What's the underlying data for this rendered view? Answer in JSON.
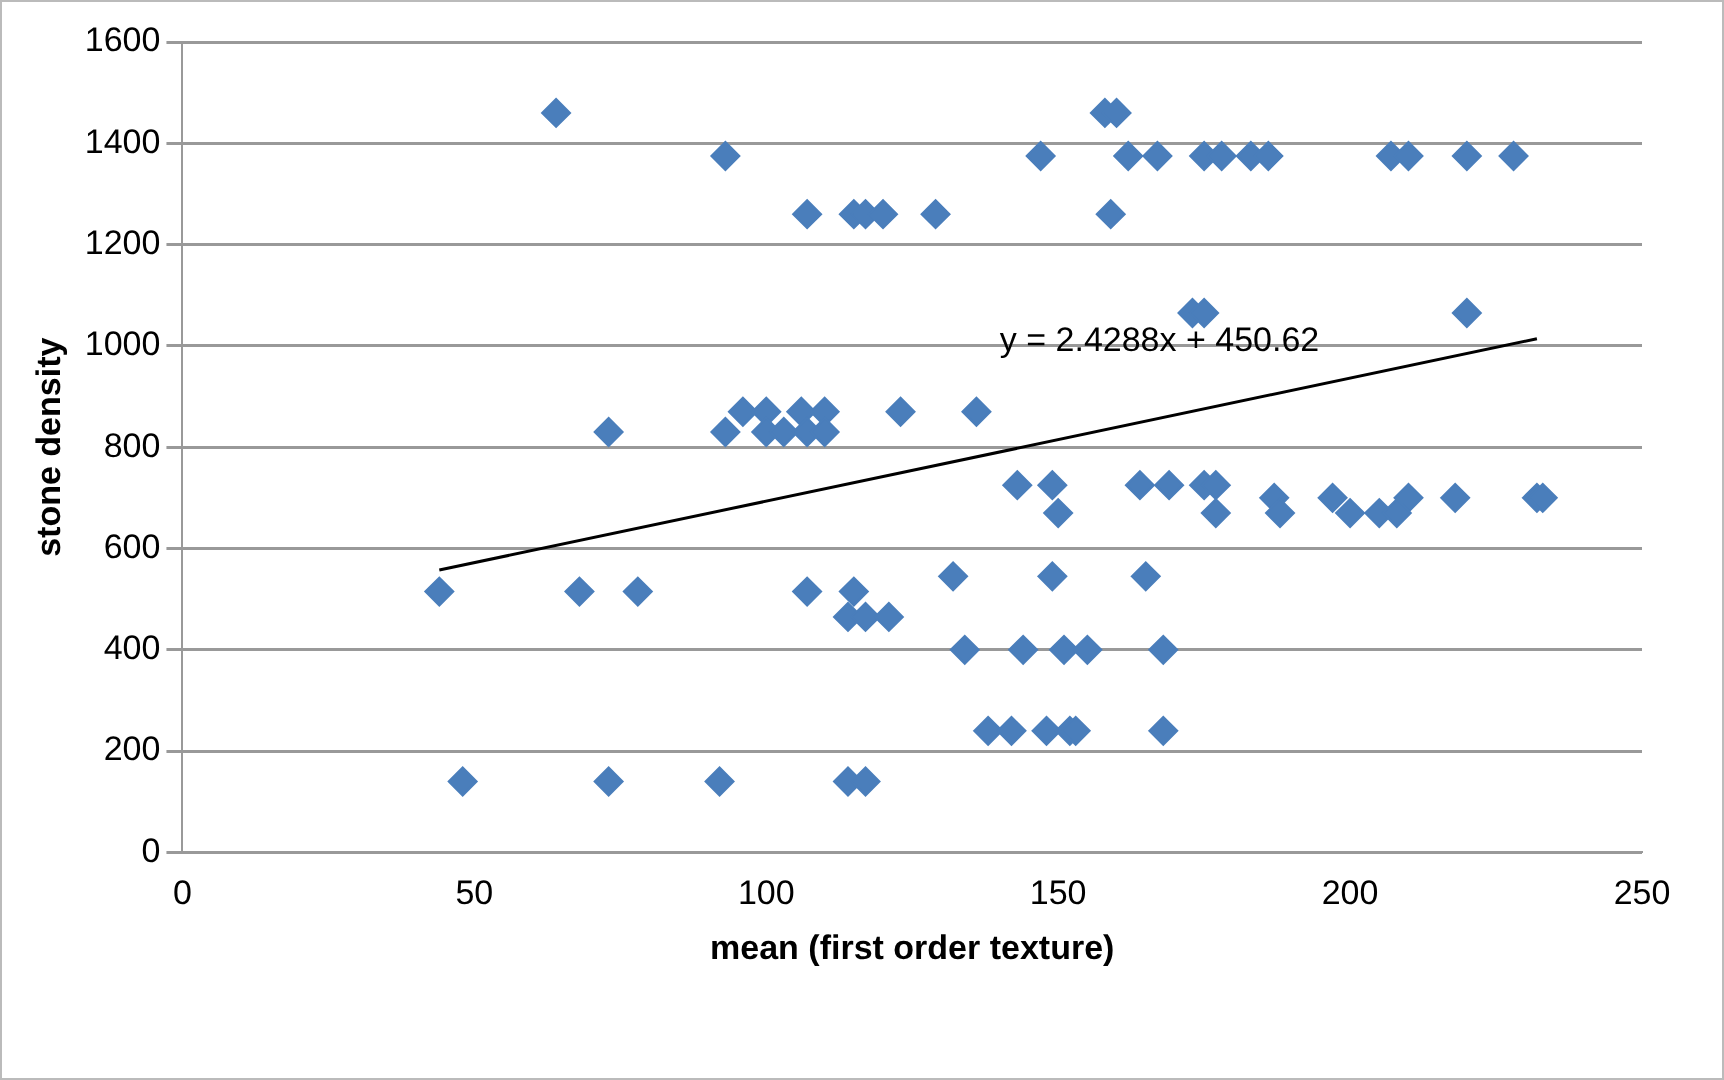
{
  "chart_data": {
    "type": "scatter",
    "xlabel": "mean (first order texture)",
    "ylabel": "stone density",
    "xlim": [
      0,
      250
    ],
    "xticks": [
      0,
      50,
      100,
      150,
      200,
      250
    ],
    "ylim": [
      0,
      1600
    ],
    "yticks": [
      0,
      200,
      400,
      600,
      800,
      1000,
      1200,
      1400,
      1600
    ],
    "grid": "y",
    "legend": false,
    "marker": "diamond",
    "annotations": [
      "y = 2.4288x + 450.62"
    ],
    "series": [
      {
        "color": "#4a7ebb",
        "x": [
          64,
          158,
          160,
          93,
          147,
          162,
          167,
          175,
          178,
          183,
          186,
          207,
          210,
          220,
          228,
          107,
          115,
          117,
          120,
          129,
          159,
          173,
          175,
          220,
          96,
          100,
          106,
          110,
          123,
          136,
          93,
          100,
          103,
          107,
          110,
          73,
          143,
          149,
          164,
          169,
          175,
          177,
          187,
          197,
          210,
          218,
          232,
          233,
          150,
          177,
          188,
          200,
          205,
          208,
          132,
          149,
          165,
          44,
          68,
          78,
          107,
          115,
          114,
          117,
          121,
          134,
          144,
          151,
          155,
          168,
          138,
          142,
          148,
          152,
          153,
          168,
          48,
          73,
          92,
          114,
          117
        ],
        "values": [
          1460,
          1460,
          1460,
          1375,
          1375,
          1375,
          1375,
          1375,
          1375,
          1375,
          1375,
          1375,
          1375,
          1375,
          1375,
          1260,
          1260,
          1260,
          1260,
          1260,
          1260,
          1065,
          1065,
          1065,
          870,
          870,
          870,
          870,
          870,
          870,
          830,
          830,
          830,
          830,
          830,
          830,
          725,
          725,
          725,
          725,
          725,
          725,
          700,
          700,
          700,
          700,
          700,
          700,
          670,
          670,
          670,
          670,
          670,
          670,
          545,
          545,
          545,
          515,
          515,
          515,
          515,
          515,
          465,
          465,
          465,
          400,
          400,
          400,
          400,
          400,
          240,
          240,
          240,
          240,
          240,
          240,
          140,
          140,
          140,
          140,
          140
        ]
      },
      {
        "type": "line",
        "color": "#000000",
        "marker": "none",
        "x": [
          44,
          232
        ],
        "values": [
          557.5,
          1014.1
        ]
      }
    ]
  }
}
